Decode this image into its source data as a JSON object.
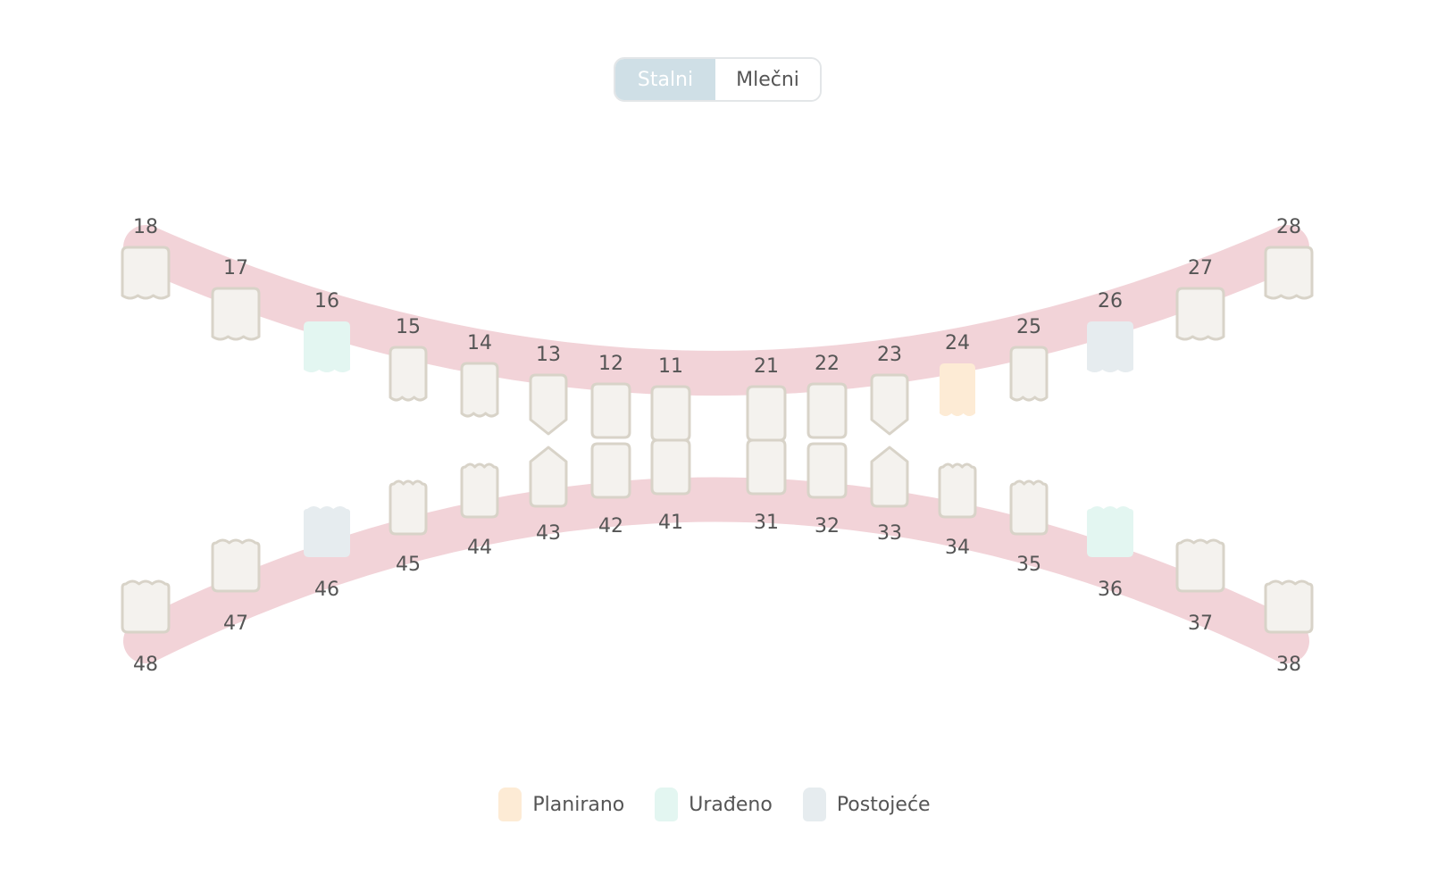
{
  "toggle": {
    "active_label": "Stalni",
    "inactive_label": "Mlečni"
  },
  "colors": {
    "arch": "#f2d3d8",
    "tooth_fill": "#f4f2ee",
    "tooth_stroke": "#d8d3c8",
    "planirano": "#fdebd5",
    "uradeno": "#e3f6f1",
    "postojece": "#e6ecef"
  },
  "upper_teeth": [
    {
      "num": "18",
      "shape": "molar",
      "status": ""
    },
    {
      "num": "17",
      "shape": "molar",
      "status": ""
    },
    {
      "num": "16",
      "shape": "molar",
      "status": "uradeno"
    },
    {
      "num": "15",
      "shape": "premolar",
      "status": ""
    },
    {
      "num": "14",
      "shape": "premolar",
      "status": ""
    },
    {
      "num": "13",
      "shape": "canine",
      "status": ""
    },
    {
      "num": "12",
      "shape": "incisor",
      "status": ""
    },
    {
      "num": "11",
      "shape": "incisor",
      "status": ""
    },
    {
      "num": "21",
      "shape": "incisor",
      "status": ""
    },
    {
      "num": "22",
      "shape": "incisor",
      "status": ""
    },
    {
      "num": "23",
      "shape": "canine",
      "status": ""
    },
    {
      "num": "24",
      "shape": "premolar",
      "status": "planirano"
    },
    {
      "num": "25",
      "shape": "premolar",
      "status": ""
    },
    {
      "num": "26",
      "shape": "molar",
      "status": "postojece"
    },
    {
      "num": "27",
      "shape": "molar",
      "status": ""
    },
    {
      "num": "28",
      "shape": "molar",
      "status": ""
    }
  ],
  "lower_teeth": [
    {
      "num": "48",
      "shape": "molar",
      "status": ""
    },
    {
      "num": "47",
      "shape": "molar",
      "status": ""
    },
    {
      "num": "46",
      "shape": "molar",
      "status": "postojece"
    },
    {
      "num": "45",
      "shape": "premolar",
      "status": ""
    },
    {
      "num": "44",
      "shape": "premolar",
      "status": ""
    },
    {
      "num": "43",
      "shape": "canine",
      "status": ""
    },
    {
      "num": "42",
      "shape": "incisor",
      "status": ""
    },
    {
      "num": "41",
      "shape": "incisor",
      "status": ""
    },
    {
      "num": "31",
      "shape": "incisor",
      "status": ""
    },
    {
      "num": "32",
      "shape": "incisor",
      "status": ""
    },
    {
      "num": "33",
      "shape": "canine",
      "status": ""
    },
    {
      "num": "34",
      "shape": "premolar",
      "status": ""
    },
    {
      "num": "35",
      "shape": "premolar",
      "status": ""
    },
    {
      "num": "36",
      "shape": "molar",
      "status": "uradeno"
    },
    {
      "num": "37",
      "shape": "molar",
      "status": ""
    },
    {
      "num": "38",
      "shape": "molar",
      "status": ""
    }
  ],
  "legend": [
    {
      "key": "planirano",
      "label": "Planirano"
    },
    {
      "key": "uradeno",
      "label": "Urađeno"
    },
    {
      "key": "postojece",
      "label": "Postojeće"
    }
  ]
}
